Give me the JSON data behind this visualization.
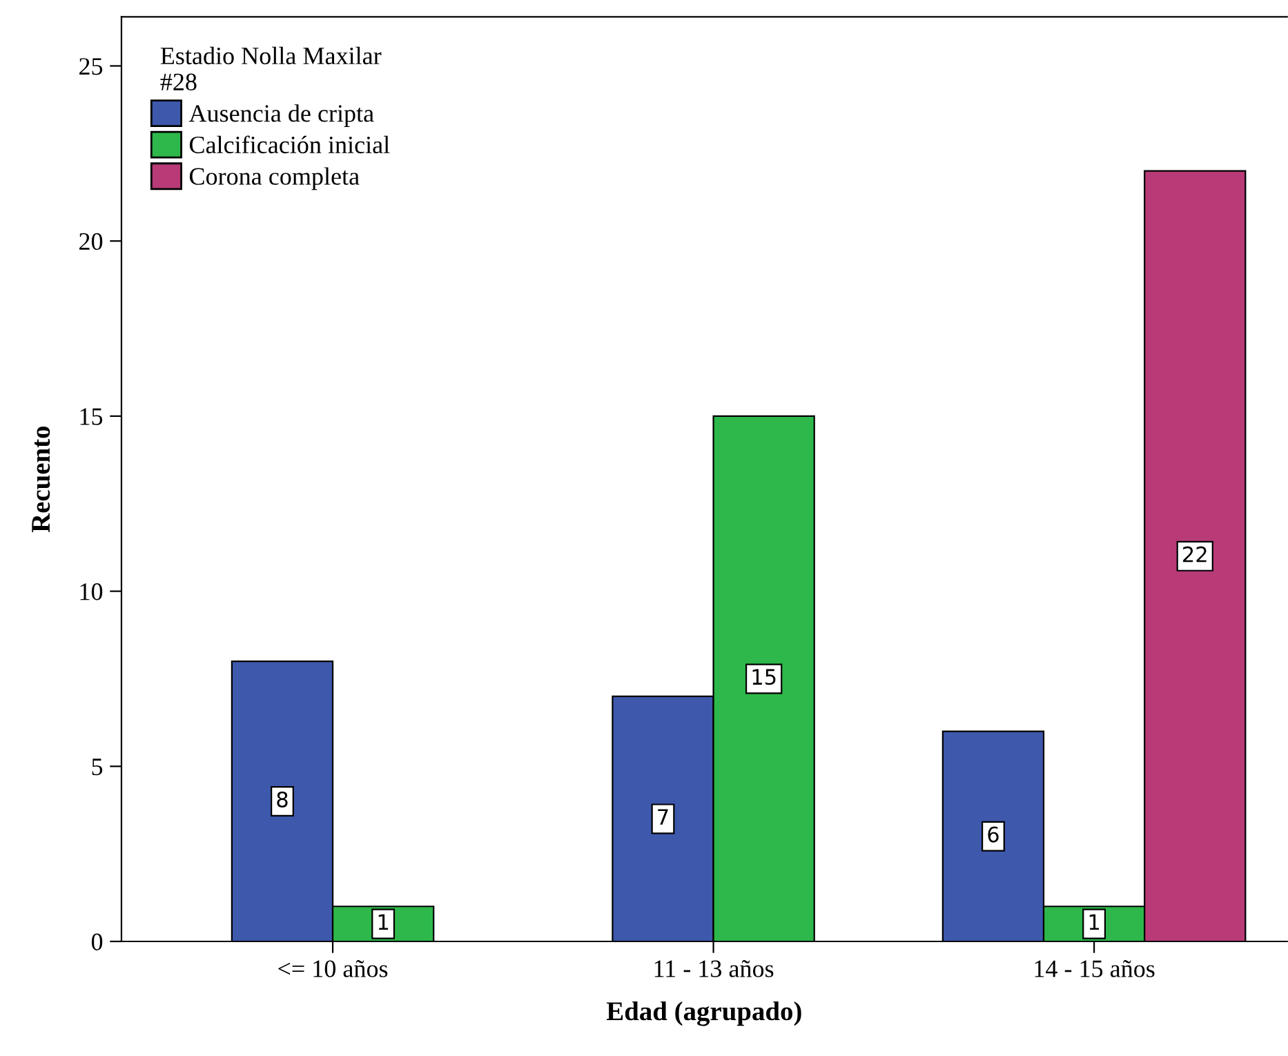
{
  "chart_data": {
    "type": "bar",
    "xlabel": "Edad (agrupado)",
    "ylabel": "Recuento",
    "legend_title": "Estadio Nolla Maxilar\n#28",
    "categories": [
      "<= 10 años",
      "11 - 13 años",
      "14 - 15 años"
    ],
    "series": [
      {
        "name": "Ausencia de cripta",
        "color": "#3e58ac",
        "values": [
          8,
          7,
          6
        ]
      },
      {
        "name": "Calcificación inicial",
        "color": "#2eb84b",
        "values": [
          1,
          15,
          1
        ]
      },
      {
        "name": "Corona completa",
        "color": "#b83b78",
        "values": [
          null,
          null,
          22
        ]
      }
    ],
    "ylim": [
      0,
      26.4
    ],
    "yticks": [
      0,
      5,
      10,
      15,
      20,
      25
    ],
    "grid": false,
    "legend": "top left",
    "data_labels": true
  }
}
